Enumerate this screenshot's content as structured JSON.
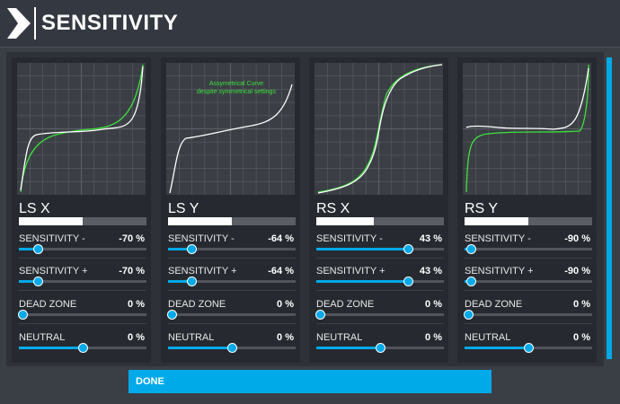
{
  "header": {
    "title": "SENSITIVITY",
    "logo_icon": "chevron-right-icon"
  },
  "colors": {
    "accent": "#00a9e8",
    "curve_green": "#3de03d",
    "curve_white": "#ffffff"
  },
  "cards": [
    {
      "label": "LS X",
      "level": 0.5,
      "annotation": "",
      "rows": [
        {
          "label": "SENSITIVITY -",
          "value": "-70 %",
          "fill": 0.15
        },
        {
          "label": "SENSITIVITY +",
          "value": "-70 %",
          "fill": 0.15
        },
        {
          "label": "DEAD ZONE",
          "value": "0 %",
          "fill": 0.0
        },
        {
          "label": "NEUTRAL",
          "value": "0 %",
          "fill": 0.5
        }
      ]
    },
    {
      "label": "LS Y",
      "level": 0.5,
      "annotation": "Assymetrical Curve despite symmetrical settings",
      "annotation_lines": [
        "Assymetrical Curve",
        "despite symmetrical settings"
      ],
      "rows": [
        {
          "label": "SENSITIVITY -",
          "value": "-64 %",
          "fill": 0.18
        },
        {
          "label": "SENSITIVITY +",
          "value": "-64 %",
          "fill": 0.18
        },
        {
          "label": "DEAD ZONE",
          "value": "0 %",
          "fill": 0.0
        },
        {
          "label": "NEUTRAL",
          "value": "0 %",
          "fill": 0.5
        }
      ]
    },
    {
      "label": "RS X",
      "level": 0.45,
      "annotation": "",
      "rows": [
        {
          "label": "SENSITIVITY -",
          "value": "43 %",
          "fill": 0.72
        },
        {
          "label": "SENSITIVITY +",
          "value": "43 %",
          "fill": 0.72
        },
        {
          "label": "DEAD ZONE",
          "value": "0 %",
          "fill": 0.0
        },
        {
          "label": "NEUTRAL",
          "value": "0 %",
          "fill": 0.5
        }
      ]
    },
    {
      "label": "RS Y",
      "level": 0.5,
      "annotation": "",
      "rows": [
        {
          "label": "SENSITIVITY -",
          "value": "-90 %",
          "fill": 0.05
        },
        {
          "label": "SENSITIVITY +",
          "value": "-90 %",
          "fill": 0.05
        },
        {
          "label": "DEAD ZONE",
          "value": "0 %",
          "fill": 0.0
        },
        {
          "label": "NEUTRAL",
          "value": "0 %",
          "fill": 0.5
        }
      ]
    }
  ],
  "footer": {
    "done_label": "DONE"
  }
}
